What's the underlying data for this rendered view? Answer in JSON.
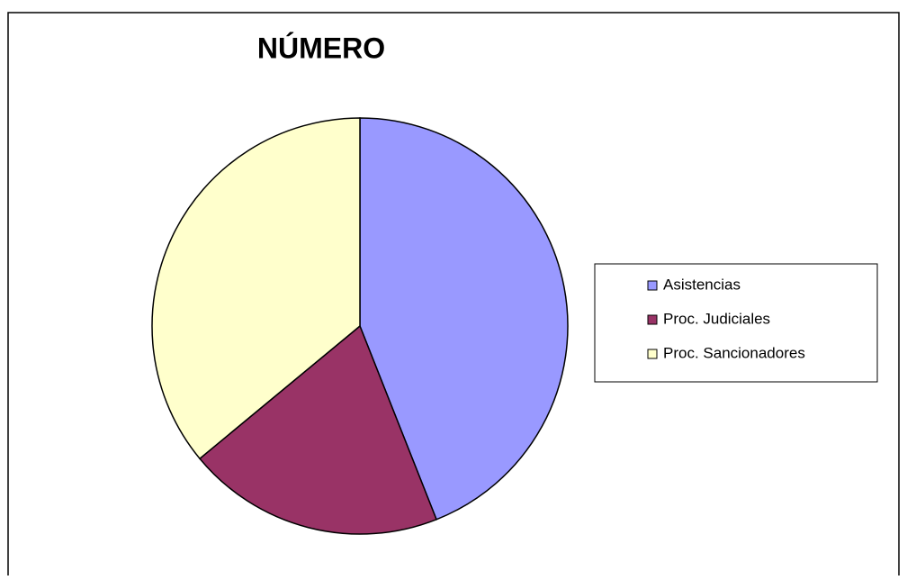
{
  "chart_data": {
    "type": "pie",
    "title": "NÚMERO",
    "categories": [
      "Asistencias",
      "Proc. Judiciales",
      "Proc. Sancionadores"
    ],
    "values": [
      44,
      20,
      36
    ],
    "colors": [
      "#9999ff",
      "#993366",
      "#ffffcc"
    ],
    "legend": "right"
  }
}
